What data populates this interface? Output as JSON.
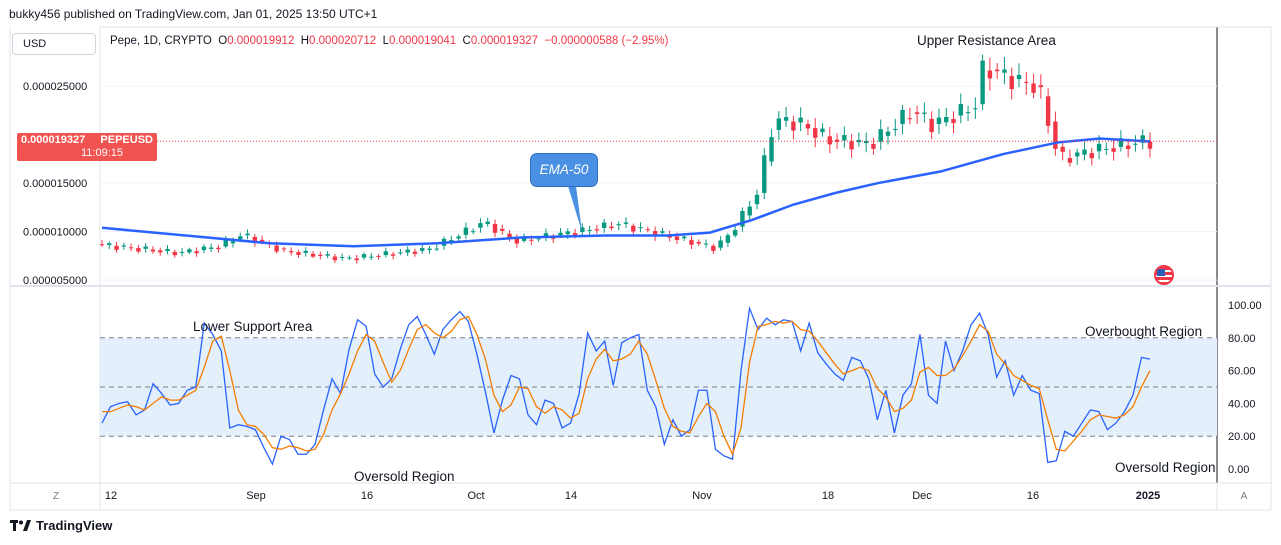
{
  "header": {
    "published_by": "bukky456 published on TradingView.com, Jan 01, 2025 13:50 UTC+1",
    "currency_selector": "USD"
  },
  "legend": {
    "symbol": "Pepe, 1D, CRYPTO",
    "open_label": "O",
    "open": "0.000019912",
    "high_label": "H",
    "high": "0.000020712",
    "low_label": "L",
    "low": "0.000019041",
    "close_label": "C",
    "close": "0.000019327",
    "change": "−0.000000588 (−2.95%)"
  },
  "price_tag": {
    "price": "0.000019327",
    "symbol": "PEPEUSD",
    "countdown": "11:09:15"
  },
  "annotations": {
    "ema_callout": "EMA-50",
    "upper_resistance": "Upper Resistance Area",
    "lower_support": "Lower Support Area",
    "oversold_region_1": "Oversold Region",
    "overbought_region": "Overbought Region",
    "oversold_region_2": "Oversold Region"
  },
  "footer": {
    "brand": "TradingView"
  },
  "corner_buttons": {
    "left": "Z",
    "right": "A"
  },
  "colors": {
    "up": "#089981",
    "down": "#f23645",
    "ema": "#2962ff",
    "k_line": "#2962ff",
    "d_line": "#f57c00",
    "band": "#e3f0fb"
  },
  "chart_data": [
    {
      "type": "candlestick",
      "ylim": [
        4.5e-06,
        3.1e-05
      ],
      "y_ticks": [
        "0.000005000",
        "0.000010000",
        "0.000015000",
        "0.000025000"
      ],
      "x_ticks": [
        "12",
        "Sep",
        "16",
        "Oct",
        "14",
        "Nov",
        "18",
        "Dec",
        "16",
        "2025"
      ],
      "current_price": 1.9327e-05,
      "ema_50": [
        {
          "x": 0,
          "y": 1.04e-05
        },
        {
          "x": 20,
          "y": 9.6e-06
        },
        {
          "x": 40,
          "y": 8.8e-06
        },
        {
          "x": 60,
          "y": 8.5e-06
        },
        {
          "x": 80,
          "y": 8.8e-06
        },
        {
          "x": 100,
          "y": 9.4e-06
        },
        {
          "x": 120,
          "y": 9.6e-06
        },
        {
          "x": 135,
          "y": 9.6e-06
        },
        {
          "x": 145,
          "y": 9.9e-06
        },
        {
          "x": 155,
          "y": 1.12e-05
        },
        {
          "x": 165,
          "y": 1.28e-05
        },
        {
          "x": 175,
          "y": 1.4e-05
        },
        {
          "x": 185,
          "y": 1.5e-05
        },
        {
          "x": 200,
          "y": 1.62e-05
        },
        {
          "x": 215,
          "y": 1.8e-05
        },
        {
          "x": 228,
          "y": 1.92e-05
        },
        {
          "x": 238,
          "y": 1.96e-05
        },
        {
          "x": 250,
          "y": 1.93e-05
        }
      ]
    },
    {
      "type": "line",
      "ylim": [
        0,
        100
      ],
      "y_ticks": [
        "100.00",
        "80.00",
        "60.00",
        "40.00",
        "20.00",
        "0.00"
      ],
      "band": [
        20,
        80
      ],
      "midline": 50,
      "series": [
        {
          "values": [
            28,
            38,
            40,
            41,
            33,
            36,
            52,
            46,
            39,
            40,
            48,
            50,
            89,
            82,
            72,
            25,
            27,
            26,
            24,
            13,
            3,
            20,
            18,
            9,
            9,
            15,
            36,
            55,
            46,
            73,
            91,
            87,
            58,
            50,
            55,
            73,
            88,
            93,
            82,
            70,
            85,
            91,
            96,
            90,
            70,
            47,
            22,
            42,
            57,
            55,
            33,
            27,
            42,
            40,
            25,
            28,
            46,
            83,
            72,
            78,
            51,
            77,
            80,
            82,
            48,
            38,
            15,
            30,
            20,
            24,
            48,
            48,
            12,
            8,
            6,
            60,
            98,
            85,
            92,
            88,
            91,
            90,
            72,
            89,
            71,
            64,
            58,
            54,
            68,
            66,
            55,
            30,
            48,
            22,
            45,
            52,
            82,
            45,
            40,
            78,
            60,
            72,
            88,
            95,
            82,
            56,
            66,
            45,
            57,
            48,
            46,
            4,
            5,
            23,
            20,
            28,
            36,
            35,
            24,
            28,
            35,
            45,
            68,
            67
          ]
        },
        {
          "values": [
            35,
            35,
            37,
            39,
            38,
            36,
            40,
            44,
            42,
            42,
            45,
            48,
            62,
            78,
            81,
            60,
            36,
            27,
            26,
            21,
            13,
            12,
            14,
            13,
            11,
            12,
            21,
            36,
            46,
            58,
            72,
            82,
            78,
            65,
            53,
            60,
            73,
            85,
            88,
            83,
            80,
            84,
            91,
            93,
            82,
            67,
            45,
            35,
            39,
            50,
            49,
            38,
            34,
            38,
            36,
            31,
            34,
            55,
            67,
            73,
            66,
            67,
            70,
            78,
            70,
            54,
            37,
            26,
            23,
            22,
            32,
            40,
            35,
            20,
            9,
            25,
            65,
            87,
            88,
            90,
            89,
            90,
            85,
            84,
            78,
            71,
            64,
            58,
            60,
            62,
            60,
            49,
            44,
            35,
            37,
            42,
            59,
            62,
            57,
            57,
            61,
            69,
            78,
            88,
            84,
            70,
            64,
            57,
            54,
            51,
            49,
            30,
            12,
            11,
            17,
            23,
            30,
            33,
            32,
            31,
            33,
            38,
            50,
            60
          ]
        }
      ]
    }
  ]
}
